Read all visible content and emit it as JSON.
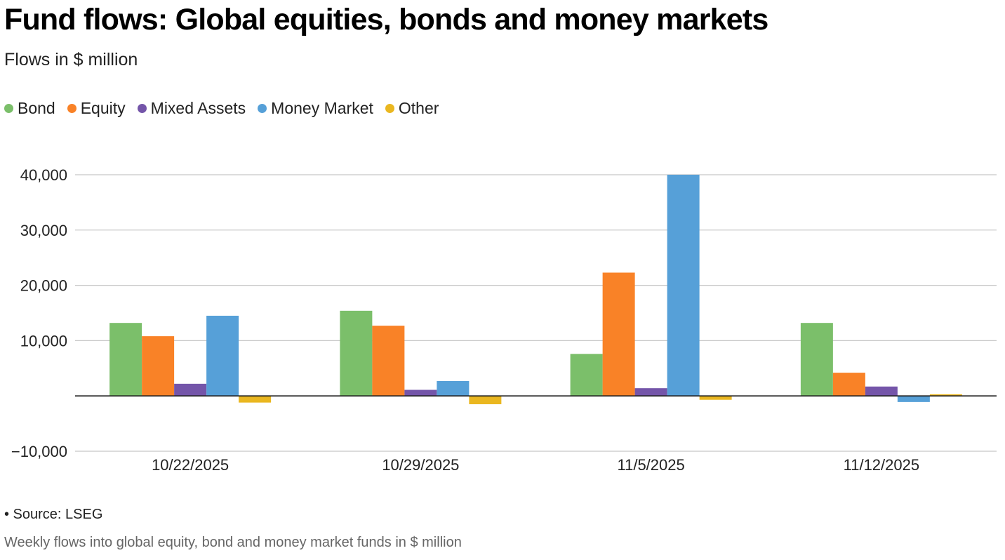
{
  "chart_data": {
    "type": "bar",
    "title": "Fund flows: Global equities, bonds and money markets",
    "subtitle": "Flows in $ million",
    "xlabel": "",
    "ylabel": "",
    "categories": [
      "10/22/2025",
      "10/29/2025",
      "11/5/2025",
      "11/12/2025"
    ],
    "series": [
      {
        "name": "Bond",
        "color": "#7bbf6a",
        "values": [
          13200,
          15400,
          7600,
          13200
        ]
      },
      {
        "name": "Equity",
        "color": "#f98227",
        "values": [
          10800,
          12700,
          22300,
          4200
        ]
      },
      {
        "name": "Mixed Assets",
        "color": "#7455a9",
        "values": [
          2200,
          1100,
          1400,
          1700
        ]
      },
      {
        "name": "Money Market",
        "color": "#56a0d8",
        "values": [
          14500,
          2700,
          40000,
          -1100
        ]
      },
      {
        "name": "Other",
        "color": "#eab720",
        "values": [
          -1200,
          -1500,
          -700,
          300
        ]
      }
    ],
    "ylim": [
      -10000,
      40000
    ],
    "yticks": [
      -10000,
      10000,
      20000,
      30000,
      40000
    ],
    "ytick_labels": [
      "−10,000",
      "10,000",
      "20,000",
      "30,000",
      "40,000"
    ],
    "grid": true,
    "legend": "top-left"
  },
  "footer": {
    "source": "• Source: LSEG",
    "note": "Weekly flows into global equity, bond and money market funds in $ million"
  }
}
